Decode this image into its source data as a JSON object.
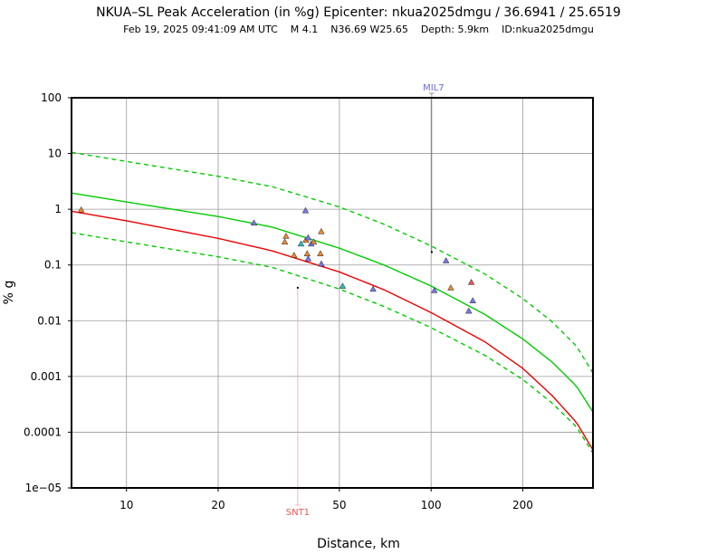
{
  "chart_data": {
    "type": "scatter",
    "title": "NKUA–SL Peak Acceleration (in %g) Epicenter: nkua2025dmgu / 36.6941 / 25.6519",
    "subtitle": "Feb 19, 2025 09:41:09 AM UTC    M 4.1    N36.69 W25.65    Depth: 5.9km    ID:nkua2025dmgu",
    "xlabel": "Distance, km",
    "ylabel": "% g",
    "x_scale": "log",
    "y_scale": "log",
    "xlim": [
      6.6,
      340
    ],
    "ylim": [
      1e-05,
      100
    ],
    "grid": true,
    "x_ticks": [
      {
        "value": 10,
        "label": "10"
      },
      {
        "value": 20,
        "label": "20"
      },
      {
        "value": 50,
        "label": "50"
      },
      {
        "value": 100,
        "label": "100"
      },
      {
        "value": 200,
        "label": "200"
      }
    ],
    "y_ticks": [
      {
        "value": 100,
        "label": "100"
      },
      {
        "value": 10,
        "label": "10"
      },
      {
        "value": 1,
        "label": "1"
      },
      {
        "value": 0.1,
        "label": "0.1"
      },
      {
        "value": 0.01,
        "label": "0.01"
      },
      {
        "value": 0.001,
        "label": "0.001"
      },
      {
        "value": 0.0001,
        "label": "0.0001"
      },
      {
        "value": 1e-05,
        "label": "1e−05"
      }
    ],
    "curves": [
      {
        "style": "solid",
        "color": "#00cc00",
        "x": [
          6.6,
          10,
          20,
          30,
          50,
          70,
          100,
          150,
          200,
          250,
          300,
          340
        ],
        "y": [
          1.95,
          1.35,
          0.74,
          0.48,
          0.2,
          0.1,
          0.042,
          0.013,
          0.0047,
          0.0018,
          0.00067,
          0.00023
        ]
      },
      {
        "style": "dashed",
        "color": "#00cc00",
        "x": [
          6.6,
          10,
          20,
          30,
          50,
          70,
          100,
          150,
          200,
          250,
          300,
          340
        ],
        "y": [
          10.5,
          7.2,
          3.9,
          2.55,
          1.1,
          0.54,
          0.22,
          0.069,
          0.025,
          0.0095,
          0.0035,
          0.00115
        ]
      },
      {
        "style": "dashed",
        "color": "#00cc00",
        "x": [
          6.6,
          10,
          20,
          30,
          50,
          70,
          100,
          150,
          200,
          250,
          300,
          340
        ],
        "y": [
          0.38,
          0.26,
          0.14,
          0.091,
          0.037,
          0.018,
          0.0075,
          0.0024,
          0.00088,
          0.00033,
          0.000125,
          4.2e-05
        ]
      },
      {
        "style": "solid",
        "color": "#ee0000",
        "x": [
          6.6,
          10,
          20,
          30,
          50,
          70,
          100,
          150,
          200,
          250,
          300,
          340
        ],
        "y": [
          0.92,
          0.62,
          0.3,
          0.18,
          0.075,
          0.036,
          0.014,
          0.0042,
          0.0014,
          0.00045,
          0.00015,
          4.8e-05
        ]
      }
    ],
    "points": [
      {
        "x": 7.1,
        "y": 0.98,
        "color": "#ee8833"
      },
      {
        "x": 26.2,
        "y": 0.57,
        "color": "#7777ee"
      },
      {
        "x": 33.4,
        "y": 0.33,
        "color": "#ee8833"
      },
      {
        "x": 33.1,
        "y": 0.26,
        "color": "#ee8833"
      },
      {
        "x": 35.5,
        "y": 0.15,
        "color": "#ee8833"
      },
      {
        "x": 37.4,
        "y": 0.24,
        "color": "#33bbbb"
      },
      {
        "x": 38.7,
        "y": 0.95,
        "color": "#7777ee"
      },
      {
        "x": 38.8,
        "y": 0.28,
        "color": "#ee8833"
      },
      {
        "x": 39.5,
        "y": 0.31,
        "color": "#7777ee"
      },
      {
        "x": 39.2,
        "y": 0.16,
        "color": "#ee8833"
      },
      {
        "x": 39.5,
        "y": 0.13,
        "color": "#7777ee"
      },
      {
        "x": 40.4,
        "y": 0.24,
        "color": "#7777ee"
      },
      {
        "x": 41.2,
        "y": 0.26,
        "color": "#ee8833"
      },
      {
        "x": 43.6,
        "y": 0.4,
        "color": "#ee8833"
      },
      {
        "x": 43.3,
        "y": 0.16,
        "color": "#ee8833"
      },
      {
        "x": 43.6,
        "y": 0.105,
        "color": "#7777ee"
      },
      {
        "x": 51.2,
        "y": 0.042,
        "color": "#33bbbb"
      },
      {
        "x": 64.5,
        "y": 0.037,
        "color": "#7777ee"
      },
      {
        "x": 102.5,
        "y": 0.035,
        "color": "#7777ee"
      },
      {
        "x": 112.0,
        "y": 0.12,
        "color": "#7777ee"
      },
      {
        "x": 116.0,
        "y": 0.039,
        "color": "#ee8833"
      },
      {
        "x": 133.0,
        "y": 0.015,
        "color": "#7777ee"
      },
      {
        "x": 135.5,
        "y": 0.049,
        "color": "#ee5555"
      },
      {
        "x": 137.0,
        "y": 0.023,
        "color": "#7777ee"
      }
    ],
    "station_markers": [
      {
        "label": "MIL7",
        "x": 100.5,
        "y": 0.17,
        "color": "#6666dd"
      },
      {
        "label": "SNT1",
        "x": 36.5,
        "y": 0.039,
        "color": "#ee5555"
      }
    ]
  }
}
